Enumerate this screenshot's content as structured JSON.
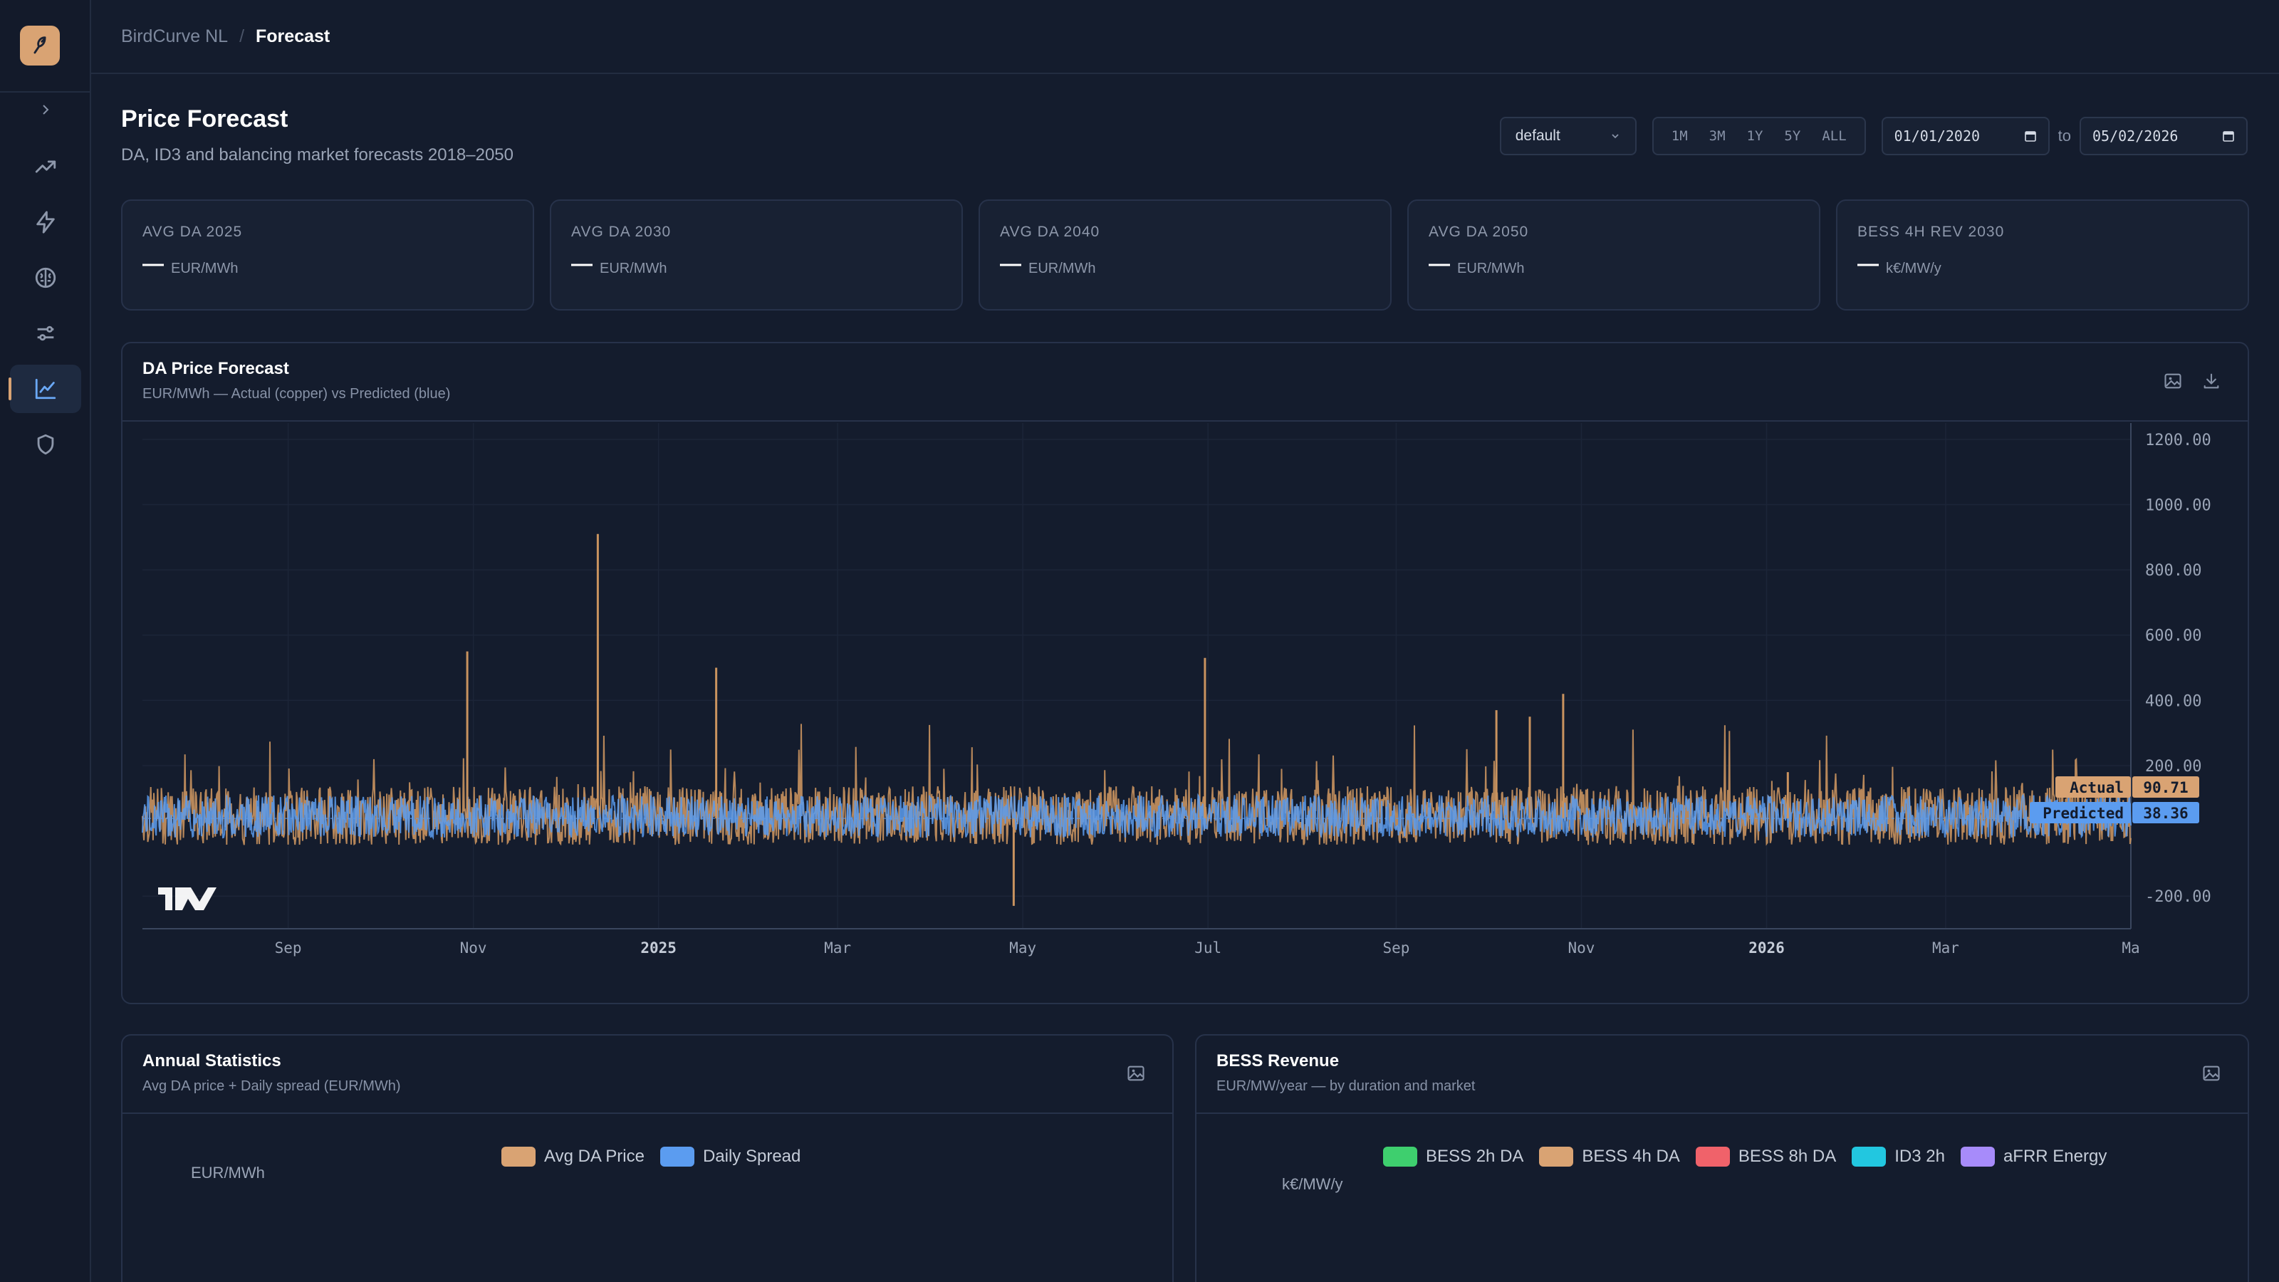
{
  "breadcrumb": {
    "root": "BirdCurve NL",
    "separator": "/",
    "current": "Forecast"
  },
  "header": {
    "title": "Price Forecast",
    "subtitle": "DA, ID3 and balancing market forecasts 2018–2050"
  },
  "controls": {
    "scenario": "default",
    "ranges": [
      "1M",
      "3M",
      "1Y",
      "5Y",
      "ALL"
    ],
    "date_from": "01/01/2020",
    "to_label": "to",
    "date_to": "05/02/2026"
  },
  "kpis": [
    {
      "label": "AVG DA 2025",
      "value": "—",
      "unit": "EUR/MWh"
    },
    {
      "label": "AVG DA 2030",
      "value": "—",
      "unit": "EUR/MWh"
    },
    {
      "label": "AVG DA 2040",
      "value": "—",
      "unit": "EUR/MWh"
    },
    {
      "label": "AVG DA 2050",
      "value": "—",
      "unit": "EUR/MWh"
    },
    {
      "label": "BESS 4H REV 2030",
      "value": "—",
      "unit": "k€/MW/y"
    }
  ],
  "da_panel": {
    "title": "DA Price Forecast",
    "subtitle": "EUR/MWh — Actual (copper) vs Predicted (blue)"
  },
  "annual_panel": {
    "title": "Annual Statistics",
    "subtitle": "Avg DA price + Daily spread (EUR/MWh)",
    "legend": [
      "Avg DA Price",
      "Daily Spread"
    ],
    "axis_unit": "EUR/MWh"
  },
  "bess_panel": {
    "title": "BESS Revenue",
    "subtitle": "EUR/MW/year — by duration and market",
    "legend": [
      "BESS 2h DA",
      "BESS 4h DA",
      "BESS 8h DA",
      "ID3 2h",
      "aFRR Energy"
    ],
    "axis_unit": "k€/MW/y"
  },
  "colors": {
    "accent": "#d9a373",
    "actual": "#c9935f",
    "predicted": "#5b9cf0",
    "bess_2h": "#3ecf6e",
    "bess_4h": "#d9a373",
    "bess_8h": "#f0626a",
    "id3_2h": "#22c7e0",
    "afrr": "#a78bfa"
  },
  "icons": {
    "sidebar": [
      "trending-up-icon",
      "lightning-icon",
      "brain-icon",
      "sliders-icon",
      "line-chart-icon",
      "shield-icon"
    ]
  },
  "chart_data": {
    "type": "line",
    "title": "DA Price Forecast",
    "ylim": [
      -300,
      1250
    ],
    "y_ticks": [
      "1200.00",
      "1000.00",
      "800.00",
      "600.00",
      "400.00",
      "200.00",
      "-200.00"
    ],
    "y_tick_values": [
      1200,
      1000,
      800,
      600,
      400,
      200,
      -200
    ],
    "x_ticks": [
      "Sep",
      "Nov",
      "2025",
      "Mar",
      "May",
      "Jul",
      "Sep",
      "Nov",
      "2026",
      "Mar",
      "Ma"
    ],
    "x_tick_dates": [
      "2024-09-01",
      "2024-11-01",
      "2025-01-01",
      "2025-03-01",
      "2025-05-01",
      "2025-07-01",
      "2025-09-01",
      "2025-11-01",
      "2026-01-01",
      "2026-03-01",
      "2026-05-01"
    ],
    "x_range": [
      "2024-07-15",
      "2026-05-01"
    ],
    "actual_spikes": [
      {
        "date": "2024-10-30",
        "value": 550
      },
      {
        "date": "2024-12-12",
        "value": 910
      },
      {
        "date": "2025-01-20",
        "value": 500
      },
      {
        "date": "2025-06-30",
        "value": 530
      },
      {
        "date": "2025-04-28",
        "value": -230
      },
      {
        "date": "2025-10-15",
        "value": 350
      },
      {
        "date": "2025-10-26",
        "value": 420
      },
      {
        "date": "2025-10-04",
        "value": 370
      },
      {
        "date": "2026-01-08",
        "value": 180
      }
    ],
    "series": [
      {
        "name": "Actual",
        "last_value": 90.71
      },
      {
        "name": "Predicted",
        "last_value": 38.36
      }
    ],
    "price_labels": {
      "actual": "90.71",
      "predicted": "38.36"
    },
    "baseline": 38,
    "grid": true,
    "watermark": "TV"
  }
}
